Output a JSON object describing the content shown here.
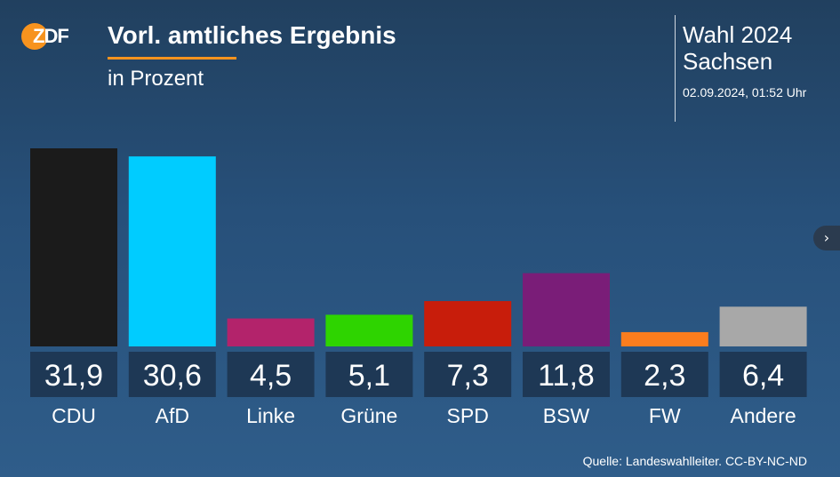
{
  "header": {
    "logo_text": "ZDF",
    "title": "Vorl. amtliches Ergebnis",
    "subtitle": "in Prozent",
    "election_line1": "Wahl 2024",
    "election_line2": "Sachsen",
    "timestamp": "02.09.2024, 01:52 Uhr"
  },
  "nav": {
    "next_icon": "chevron-right-icon",
    "next_glyph": "›"
  },
  "footer": {
    "source": "Quelle: Landeswahlleiter. CC-BY-NC-ND"
  },
  "colors": {
    "accent": "#f7931e",
    "value_box": "#1e3855"
  },
  "chart_data": {
    "type": "bar",
    "title": "Vorl. amtliches Ergebnis",
    "subtitle": "in Prozent",
    "categories": [
      "CDU",
      "AfD",
      "Linke",
      "Grüne",
      "SPD",
      "BSW",
      "FW",
      "Andere"
    ],
    "values": [
      31.9,
      30.6,
      4.5,
      5.1,
      7.3,
      11.8,
      2.3,
      6.4
    ],
    "value_labels": [
      "31,9",
      "30,6",
      "4,5",
      "5,1",
      "7,3",
      "11,8",
      "2,3",
      "6,4"
    ],
    "colors": [
      "#1b1b1b",
      "#00ccff",
      "#b3236b",
      "#2ed400",
      "#c81d0b",
      "#7a1d78",
      "#fb7d1e",
      "#a8a8a8"
    ],
    "ylim": [
      0,
      31.9
    ],
    "grid": false,
    "legend": "none"
  }
}
